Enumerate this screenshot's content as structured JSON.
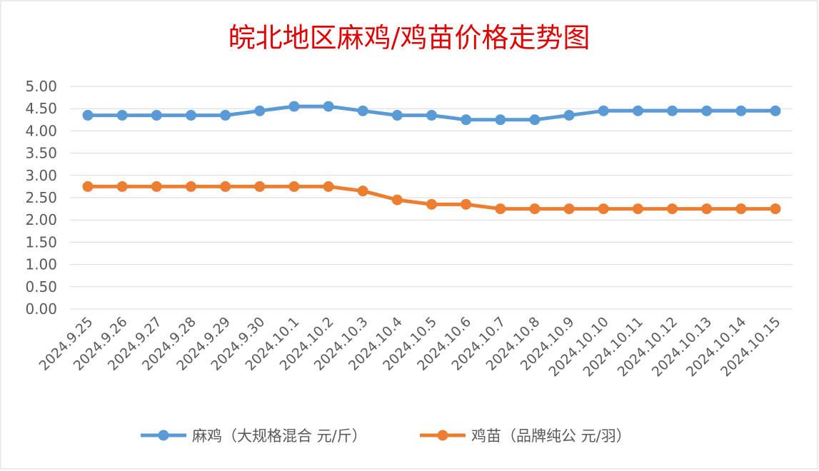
{
  "chart_data": {
    "type": "line",
    "title": "皖北地区麻鸡/鸡苗价格走势图",
    "xlabel": "",
    "ylabel": "",
    "categories": [
      "2024.9.25",
      "2024.9.26",
      "2024.9.27",
      "2024.9.28",
      "2024.9.29",
      "2024.9.30",
      "2024.10.1",
      "2024.10.2",
      "2024.10.3",
      "2024.10.4",
      "2024.10.5",
      "2024.10.6",
      "2024.10.7",
      "2024.10.8",
      "2024.10.9",
      "2024.10.10",
      "2024.10.11",
      "2024.10.12",
      "2024.10.13",
      "2024.10.14",
      "2024.10.15"
    ],
    "y_ticks": [
      "0.00",
      "0.50",
      "1.00",
      "1.50",
      "2.00",
      "2.50",
      "3.00",
      "3.50",
      "4.00",
      "4.50",
      "5.00"
    ],
    "ylim": [
      0,
      5
    ],
    "grid": true,
    "legend_position": "bottom",
    "series": [
      {
        "name": "麻鸡（大规格混合 元/斤）",
        "color": "#5b9bd5",
        "values": [
          4.35,
          4.35,
          4.35,
          4.35,
          4.35,
          4.45,
          4.55,
          4.55,
          4.45,
          4.35,
          4.35,
          4.25,
          4.25,
          4.25,
          4.35,
          4.45,
          4.45,
          4.45,
          4.45,
          4.45,
          4.45
        ]
      },
      {
        "name": "鸡苗（品牌纯公 元/羽）",
        "color": "#ed7d31",
        "values": [
          2.75,
          2.75,
          2.75,
          2.75,
          2.75,
          2.75,
          2.75,
          2.75,
          2.65,
          2.45,
          2.35,
          2.35,
          2.25,
          2.25,
          2.25,
          2.25,
          2.25,
          2.25,
          2.25,
          2.25,
          2.25
        ]
      }
    ]
  }
}
